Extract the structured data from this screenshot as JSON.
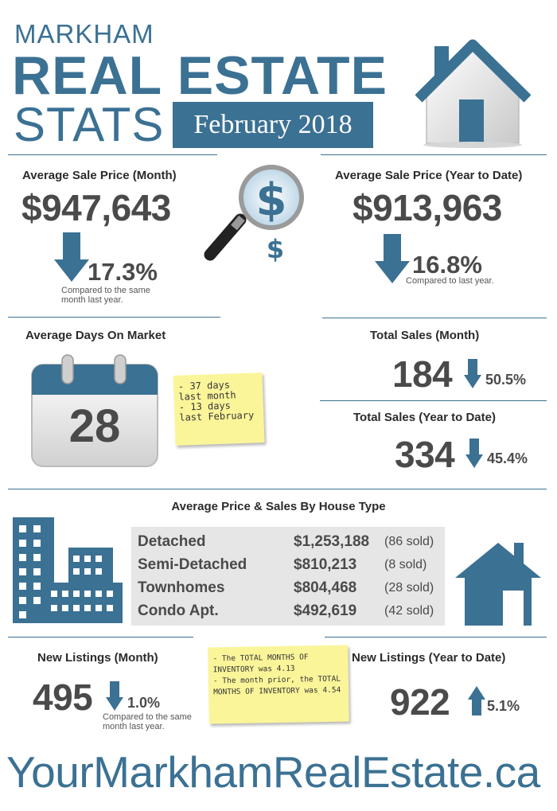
{
  "header": {
    "city": "MARKHAM",
    "line1": "REAL ESTATE",
    "line2": "STATS",
    "date": "February 2018"
  },
  "avg_sale_month": {
    "label": "Average Sale Price (Month)",
    "value": "$947,643",
    "change": "17.3%",
    "direction": "down",
    "note": "Compared to the same month last year."
  },
  "avg_sale_ytd": {
    "label": "Average Sale Price (Year to Date)",
    "value": "$913,963",
    "change": "16.8%",
    "direction": "down",
    "note": "Compared to last year."
  },
  "days_on_market": {
    "label": "Average Days On Market",
    "value": "28",
    "notes": [
      "- 37 days last month",
      "- 13 days last February"
    ]
  },
  "total_sales_month": {
    "label": "Total Sales (Month)",
    "value": "184",
    "change": "50.5%",
    "direction": "down"
  },
  "total_sales_ytd": {
    "label": "Total Sales (Year to Date)",
    "value": "334",
    "change": "45.4%",
    "direction": "down"
  },
  "house_type": {
    "title": "Average Price & Sales By House Type",
    "rows": [
      {
        "type": "Detached",
        "price": "$1,253,188",
        "sold": "(86 sold)"
      },
      {
        "type": "Semi-Detached",
        "price": "$810,213",
        "sold": "(8 sold)"
      },
      {
        "type": "Townhomes",
        "price": "$804,468",
        "sold": "(28 sold)"
      },
      {
        "type": "Condo Apt.",
        "price": "$492,619",
        "sold": "(42 sold)"
      }
    ]
  },
  "new_listings_month": {
    "label": "New Listings (Month)",
    "value": "495",
    "change": "1.0%",
    "direction": "down",
    "note": "Compared to the same month last year."
  },
  "inventory_note": [
    "- The TOTAL MONTHS OF INVENTORY was 4.13",
    "- The month prior, the TOTAL MONTHS OF INVENTORY was 4.54"
  ],
  "new_listings_ytd": {
    "label": "New Listings (Year to Date)",
    "value": "922",
    "change": "5.1%",
    "direction": "up"
  },
  "footer": {
    "site": "YourMarkhamRealEstate.ca"
  },
  "colors": {
    "brand": "#3b7193",
    "note": "#fbf59a",
    "table": "#e6e6e6"
  }
}
